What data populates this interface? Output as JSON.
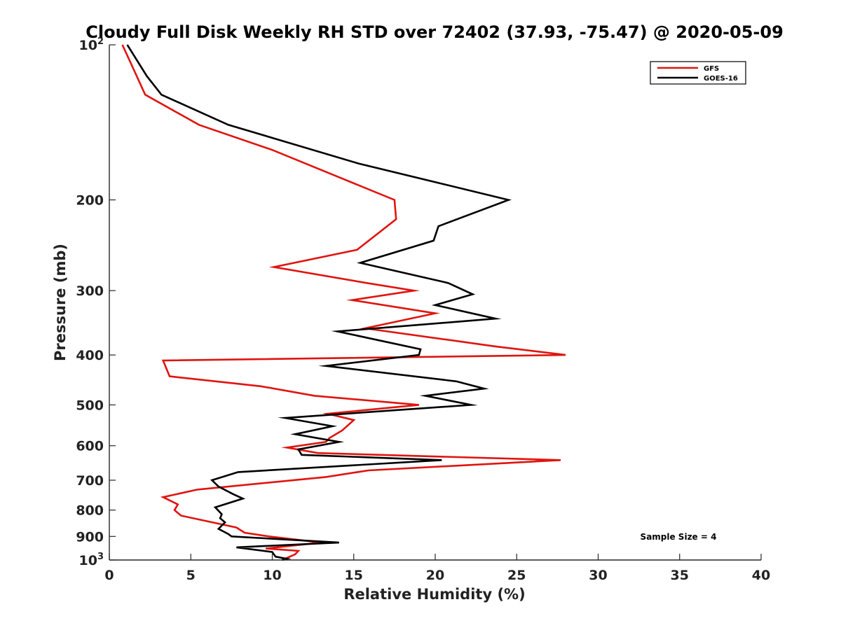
{
  "chart_data": {
    "type": "line",
    "title": "Cloudy Full Disk Weekly RH STD over 72402 (37.93, -75.47) @ 2020-05-09",
    "xlabel": "Relative Humidity (%)",
    "ylabel": "Pressure (mb)",
    "xlim": [
      0,
      40
    ],
    "ylim": [
      100,
      1000
    ],
    "y_scale": "log",
    "y_reversed": true,
    "x_ticks": [
      0,
      5,
      10,
      15,
      20,
      25,
      30,
      35,
      40
    ],
    "x_tick_labels": [
      "0",
      "5",
      "10",
      "15",
      "20",
      "25",
      "30",
      "35",
      "40"
    ],
    "y_ticks": [
      {
        "value": 100,
        "label": "10",
        "sup": "2"
      },
      {
        "value": 200,
        "label": "200"
      },
      {
        "value": 300,
        "label": "300"
      },
      {
        "value": 400,
        "label": "400"
      },
      {
        "value": 500,
        "label": "500"
      },
      {
        "value": 600,
        "label": "600"
      },
      {
        "value": 700,
        "label": "700"
      },
      {
        "value": 800,
        "label": "800"
      },
      {
        "value": 900,
        "label": "900"
      },
      {
        "value": 1000,
        "label": "10",
        "sup": "3"
      }
    ],
    "grid": false,
    "legend_position": "top-right",
    "annotation": "Sample Size = 4",
    "series": [
      {
        "name": "GFS",
        "color": "#e0140f",
        "points": [
          [
            0.8,
            100
          ],
          [
            1.4,
            110
          ],
          [
            2.2,
            125
          ],
          [
            5.5,
            143
          ],
          [
            10.0,
            160
          ],
          [
            17.5,
            200
          ],
          [
            17.6,
            218
          ],
          [
            15.2,
            250
          ],
          [
            10.1,
            270
          ],
          [
            15.8,
            290
          ],
          [
            18.7,
            300
          ],
          [
            14.9,
            313
          ],
          [
            20.0,
            332
          ],
          [
            15.7,
            355
          ],
          [
            23.7,
            385
          ],
          [
            28.0,
            400
          ],
          [
            3.3,
            410
          ],
          [
            3.7,
            440
          ],
          [
            9.3,
            460
          ],
          [
            12.6,
            480
          ],
          [
            19.0,
            500
          ],
          [
            13.4,
            520
          ],
          [
            15.0,
            535
          ],
          [
            14.3,
            560
          ],
          [
            13.5,
            580
          ],
          [
            13.3,
            590
          ],
          [
            10.9,
            605
          ],
          [
            12.8,
            620
          ],
          [
            27.7,
            640
          ],
          [
            15.9,
            670
          ],
          [
            13.3,
            690
          ],
          [
            5.4,
            730
          ],
          [
            3.3,
            755
          ],
          [
            4.2,
            780
          ],
          [
            4.0,
            800
          ],
          [
            4.4,
            820
          ],
          [
            7.8,
            865
          ],
          [
            8.3,
            885
          ],
          [
            9.8,
            900
          ],
          [
            13.0,
            925
          ],
          [
            9.6,
            950
          ],
          [
            11.6,
            960
          ],
          [
            11.4,
            975
          ],
          [
            10.6,
            1000
          ]
        ]
      },
      {
        "name": "GOES-16",
        "color": "#000000",
        "points": [
          [
            1.1,
            100
          ],
          [
            2.3,
            115
          ],
          [
            3.2,
            125
          ],
          [
            7.3,
            143
          ],
          [
            15.3,
            170
          ],
          [
            24.5,
            200
          ],
          [
            20.2,
            225
          ],
          [
            19.9,
            240
          ],
          [
            15.4,
            265
          ],
          [
            20.8,
            290
          ],
          [
            22.3,
            305
          ],
          [
            20.0,
            320
          ],
          [
            23.7,
            340
          ],
          [
            14.0,
            360
          ],
          [
            19.1,
            390
          ],
          [
            19.0,
            400
          ],
          [
            13.3,
            420
          ],
          [
            21.3,
            450
          ],
          [
            23.0,
            465
          ],
          [
            19.4,
            480
          ],
          [
            22.2,
            500
          ],
          [
            10.8,
            530
          ],
          [
            13.7,
            550
          ],
          [
            11.4,
            570
          ],
          [
            14.1,
            590
          ],
          [
            11.6,
            610
          ],
          [
            11.8,
            625
          ],
          [
            20.4,
            640
          ],
          [
            7.9,
            675
          ],
          [
            6.3,
            700
          ],
          [
            6.7,
            720
          ],
          [
            7.6,
            745
          ],
          [
            8.2,
            760
          ],
          [
            6.5,
            790
          ],
          [
            6.9,
            815
          ],
          [
            6.8,
            830
          ],
          [
            7.1,
            845
          ],
          [
            6.7,
            870
          ],
          [
            7.3,
            890
          ],
          [
            7.5,
            900
          ],
          [
            14.1,
            925
          ],
          [
            7.8,
            945
          ],
          [
            10.0,
            965
          ],
          [
            10.2,
            985
          ],
          [
            10.9,
            995
          ],
          [
            10.6,
            1000
          ]
        ]
      }
    ]
  }
}
